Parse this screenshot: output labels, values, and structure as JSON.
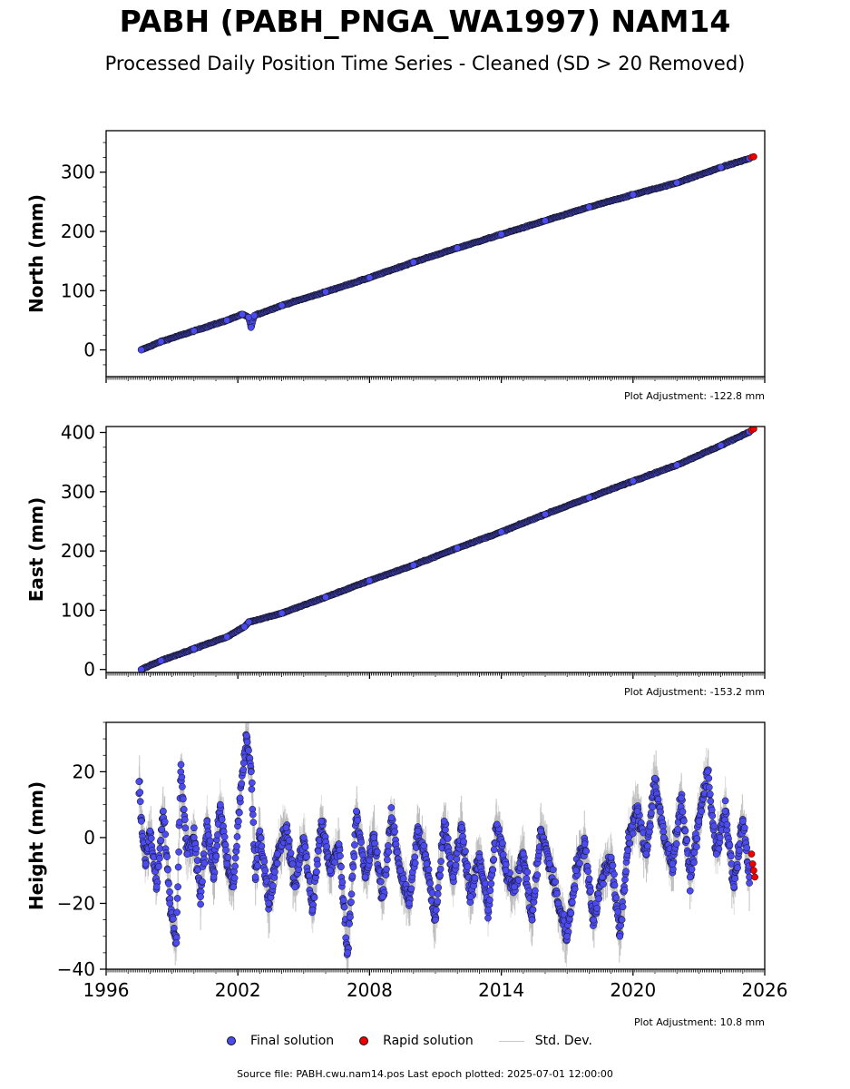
{
  "title": "PABH (PABH_PNGA_WA1997) NAM14",
  "subtitle": "Processed Daily Position Time Series - Cleaned (SD > 20 Removed)",
  "legend": {
    "final": "Final solution",
    "rapid": "Rapid solution",
    "std": "Std. Dev."
  },
  "source": "Source file: PABH.cwu.nam14.pos  Last epoch plotted: 2025-07-01 12:00:00",
  "colors": {
    "final": "#4b4bf0",
    "rapid": "#ee0000",
    "std": "#c8c8c8",
    "edge": "#111111"
  },
  "chart_data": [
    {
      "type": "scatter",
      "ylabel": "North (mm)",
      "xlim": [
        1996,
        2026
      ],
      "ylim": [
        -45,
        370
      ],
      "yticks": [
        0,
        100,
        200,
        300
      ],
      "xticks": [
        1996,
        2002,
        2008,
        2014,
        2020,
        2026
      ],
      "show_xticklabels": false,
      "adjustment": "Plot Adjustment: -122.8 mm",
      "series": [
        {
          "kind": "final",
          "x": [
            1997.6,
            1998.5,
            2000.0,
            2001.5,
            2002.2,
            2002.5,
            2002.6,
            2002.75,
            2004.0,
            2006.0,
            2008.0,
            2010.0,
            2012.0,
            2014.0,
            2016.0,
            2018.0,
            2020.0,
            2022.0,
            2024.0,
            2025.3
          ],
          "y": [
            0,
            14,
            32,
            50,
            60,
            55,
            38,
            58,
            75,
            98,
            122,
            148,
            172,
            195,
            218,
            241,
            262,
            282,
            308,
            323
          ]
        },
        {
          "kind": "rapid",
          "x": [
            2025.4,
            2025.5
          ],
          "y": [
            325,
            326
          ]
        }
      ]
    },
    {
      "type": "scatter",
      "ylabel": "East (mm)",
      "xlim": [
        1996,
        2026
      ],
      "ylim": [
        -5,
        410
      ],
      "yticks": [
        0,
        100,
        200,
        300,
        400
      ],
      "xticks": [
        1996,
        2002,
        2008,
        2014,
        2020,
        2026
      ],
      "show_xticklabels": false,
      "adjustment": "Plot Adjustment: -153.2 mm",
      "series": [
        {
          "kind": "final",
          "x": [
            1997.6,
            1998.5,
            2000.0,
            2001.5,
            2002.3,
            2002.5,
            2004.0,
            2006.0,
            2008.0,
            2010.0,
            2012.0,
            2014.0,
            2016.0,
            2018.0,
            2020.0,
            2022.0,
            2024.0,
            2025.3
          ],
          "y": [
            0,
            15,
            35,
            55,
            72,
            80,
            95,
            122,
            150,
            176,
            205,
            232,
            262,
            290,
            318,
            345,
            378,
            401
          ]
        },
        {
          "kind": "rapid",
          "x": [
            2025.4,
            2025.5
          ],
          "y": [
            404,
            406
          ]
        }
      ]
    },
    {
      "type": "scatter",
      "ylabel": "Height (mm)",
      "xlim": [
        1996,
        2026
      ],
      "ylim": [
        -40,
        35
      ],
      "yticks": [
        -40,
        -20,
        0,
        20
      ],
      "xticks": [
        1996,
        2002,
        2008,
        2014,
        2020,
        2026
      ],
      "show_xticklabels": true,
      "adjustment": "Plot Adjustment: 10.8 mm",
      "series": [
        {
          "kind": "final",
          "x": [
            1997.5,
            1997.6,
            1997.8,
            1998.0,
            1998.3,
            1998.6,
            1998.9,
            1999.2,
            1999.4,
            1999.7,
            2000.0,
            2000.3,
            2000.6,
            2000.9,
            2001.2,
            2001.5,
            2001.8,
            2002.1,
            2002.4,
            2002.6,
            2002.8,
            2003.0,
            2003.4,
            2003.8,
            2004.2,
            2004.6,
            2005.0,
            2005.4,
            2005.8,
            2006.2,
            2006.6,
            2007.0,
            2007.4,
            2007.8,
            2008.2,
            2008.6,
            2009.0,
            2009.4,
            2009.8,
            2010.2,
            2010.6,
            2011.0,
            2011.4,
            2011.8,
            2012.2,
            2012.6,
            2013.0,
            2013.4,
            2013.8,
            2014.2,
            2014.6,
            2015.0,
            2015.4,
            2015.8,
            2016.2,
            2016.6,
            2017.0,
            2017.4,
            2017.8,
            2018.2,
            2018.6,
            2019.0,
            2019.4,
            2019.8,
            2020.2,
            2020.6,
            2021.0,
            2021.4,
            2021.8,
            2022.2,
            2022.6,
            2023.0,
            2023.4,
            2023.8,
            2024.2,
            2024.6,
            2025.0,
            2025.3
          ],
          "y": [
            17,
            5,
            -8,
            2,
            -15,
            8,
            -20,
            -32,
            20,
            -5,
            0,
            -18,
            5,
            -12,
            10,
            -8,
            -15,
            12,
            31,
            20,
            -12,
            2,
            -20,
            -5,
            3,
            -15,
            0,
            -22,
            5,
            -10,
            -2,
            -35,
            8,
            -12,
            0,
            -18,
            6,
            -10,
            -20,
            2,
            -8,
            -25,
            5,
            -12,
            3,
            -18,
            -6,
            -22,
            4,
            -10,
            -15,
            -5,
            -25,
            2,
            -8,
            -20,
            -30,
            -10,
            -2,
            -25,
            -12,
            -6,
            -30,
            0,
            8,
            -5,
            18,
            0,
            -8,
            12,
            -12,
            5,
            20,
            -5,
            8,
            -15,
            5,
            -12
          ]
        },
        {
          "kind": "rapid",
          "x": [
            2025.4,
            2025.45,
            2025.5,
            2025.55
          ],
          "y": [
            -5,
            -8,
            -10,
            -12
          ]
        }
      ]
    }
  ]
}
